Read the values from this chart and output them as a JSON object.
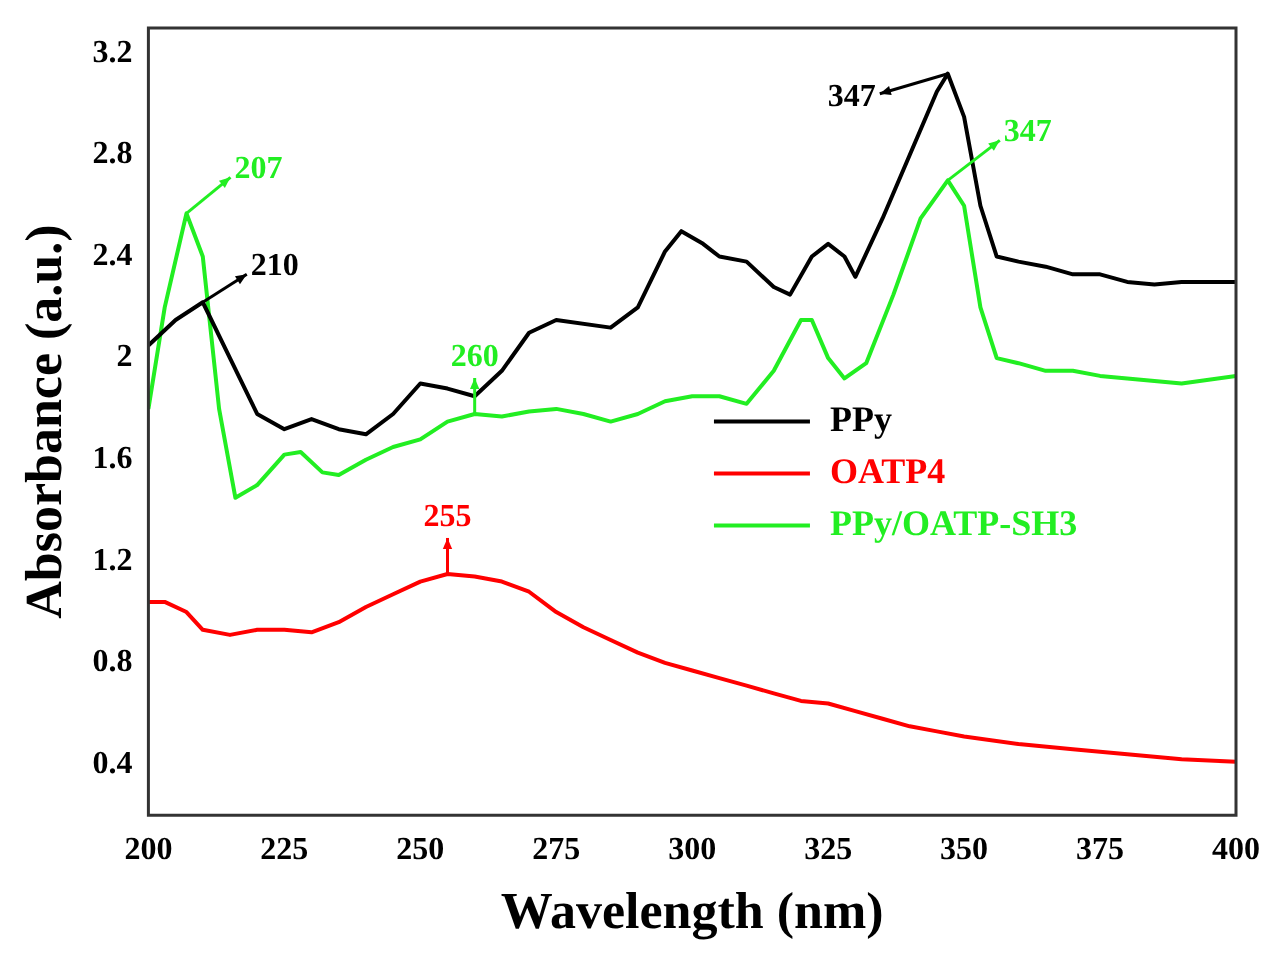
{
  "chart_data": {
    "type": "line",
    "xlabel": "Wavelength (nm)",
    "ylabel": "Absorbance (a.u.)",
    "xlim": [
      200,
      400
    ],
    "xticks": [
      200,
      225,
      250,
      275,
      300,
      325,
      350,
      375,
      400
    ],
    "ylim": [
      0.2,
      3.3
    ],
    "yticks": [
      0.4,
      0.8,
      1.2,
      1.6,
      2.0,
      2.4,
      2.8,
      3.2
    ],
    "grid": false,
    "legend": "right",
    "marker": "none",
    "line_style": "solid",
    "series": [
      {
        "name": "PPy",
        "color": "#000000",
        "x": [
          200,
          205,
          210,
          215,
          220,
          225,
          230,
          235,
          240,
          245,
          250,
          255,
          260,
          265,
          270,
          275,
          285,
          290,
          295,
          298,
          302,
          305,
          310,
          315,
          318,
          322,
          325,
          328,
          330,
          335,
          340,
          345,
          347,
          350,
          353,
          356,
          360,
          365,
          370,
          375,
          380,
          385,
          390,
          400
        ],
        "values": [
          2.05,
          2.15,
          2.22,
          2.0,
          1.78,
          1.72,
          1.76,
          1.72,
          1.7,
          1.78,
          1.9,
          1.88,
          1.85,
          1.95,
          2.1,
          2.15,
          2.12,
          2.2,
          2.42,
          2.5,
          2.45,
          2.4,
          2.38,
          2.28,
          2.25,
          2.4,
          2.45,
          2.4,
          2.32,
          2.55,
          2.8,
          3.05,
          3.12,
          2.95,
          2.6,
          2.4,
          2.38,
          2.36,
          2.33,
          2.33,
          2.3,
          2.29,
          2.3,
          2.3
        ]
      },
      {
        "name": "OATP4",
        "color": "#ff0000",
        "x": [
          200,
          203,
          207,
          210,
          215,
          220,
          225,
          230,
          235,
          240,
          245,
          250,
          255,
          260,
          265,
          270,
          275,
          280,
          285,
          290,
          295,
          300,
          305,
          310,
          315,
          320,
          325,
          330,
          335,
          340,
          345,
          350,
          360,
          370,
          380,
          390,
          400
        ],
        "values": [
          1.04,
          1.04,
          1.0,
          0.93,
          0.91,
          0.93,
          0.93,
          0.92,
          0.96,
          1.02,
          1.07,
          1.12,
          1.15,
          1.14,
          1.12,
          1.08,
          1.0,
          0.94,
          0.89,
          0.84,
          0.8,
          0.77,
          0.74,
          0.71,
          0.68,
          0.65,
          0.64,
          0.61,
          0.58,
          0.55,
          0.53,
          0.51,
          0.48,
          0.46,
          0.44,
          0.42,
          0.41
        ]
      },
      {
        "name": "PPy/OATP-SH3",
        "color": "#22ee22",
        "x": [
          200,
          203,
          207,
          210,
          213,
          216,
          220,
          225,
          228,
          232,
          235,
          240,
          245,
          250,
          255,
          260,
          265,
          270,
          275,
          280,
          285,
          290,
          295,
          300,
          305,
          310,
          315,
          320,
          322,
          325,
          328,
          332,
          337,
          342,
          347,
          350,
          353,
          356,
          360,
          365,
          370,
          375,
          380,
          390,
          400
        ],
        "values": [
          1.8,
          2.2,
          2.57,
          2.4,
          1.8,
          1.45,
          1.5,
          1.62,
          1.63,
          1.55,
          1.54,
          1.6,
          1.65,
          1.68,
          1.75,
          1.78,
          1.77,
          1.79,
          1.8,
          1.78,
          1.75,
          1.78,
          1.83,
          1.85,
          1.85,
          1.82,
          1.95,
          2.15,
          2.15,
          2.0,
          1.92,
          1.98,
          2.25,
          2.55,
          2.7,
          2.6,
          2.2,
          2.0,
          1.98,
          1.95,
          1.95,
          1.93,
          1.92,
          1.9,
          1.93
        ]
      }
    ],
    "annotations": [
      {
        "text": "207",
        "x": 207,
        "y": 2.57
      },
      {
        "text": "210",
        "x": 210,
        "y": 2.22
      },
      {
        "text": "260",
        "x": 260,
        "y": 1.78
      },
      {
        "text": "255",
        "x": 255,
        "y": 1.15
      },
      {
        "text": "347",
        "x": 347,
        "y": 2.7
      },
      {
        "text": "347",
        "x": 347,
        "y": 3.12
      }
    ]
  }
}
